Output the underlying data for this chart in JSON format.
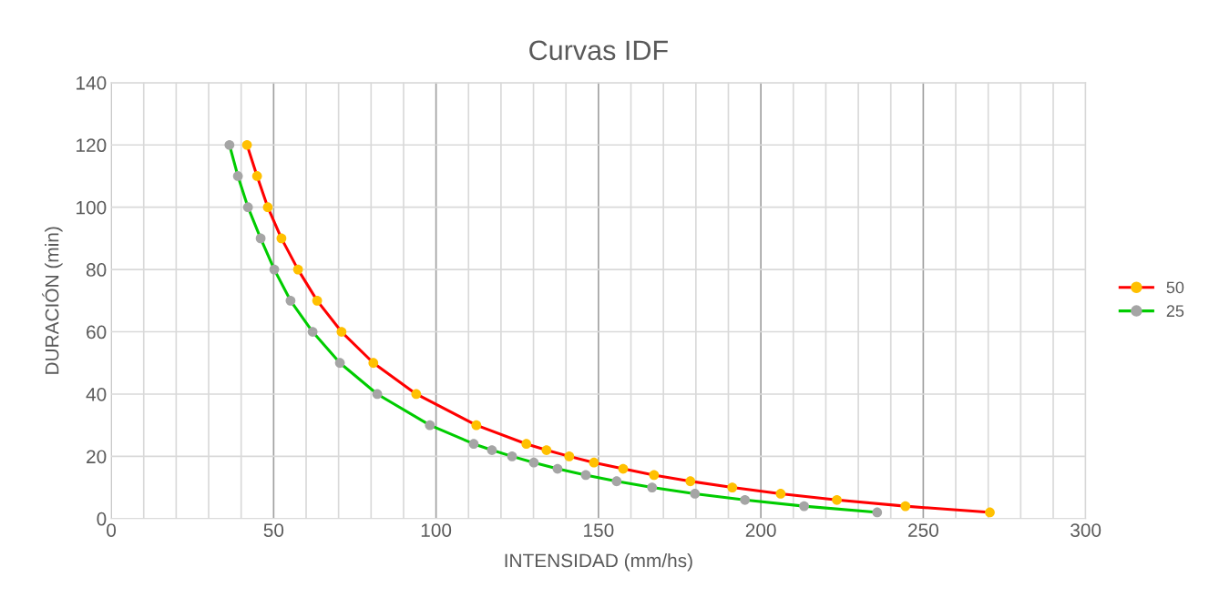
{
  "chart_data": {
    "type": "line",
    "title": "Curvas IDF",
    "xlabel": "INTENSIDAD (mm/hs)",
    "ylabel": "DURACIÓN (min)",
    "xlim": [
      0,
      300
    ],
    "ylim": [
      0,
      140
    ],
    "xticks": [
      0,
      {
        "value": 10,
        "label": null
      },
      {
        "value": 20,
        "label": null
      },
      {
        "value": 30,
        "label": null
      },
      {
        "value": 40,
        "label": null
      },
      50,
      {
        "value": 60,
        "label": null
      },
      {
        "value": 70,
        "label": null
      },
      {
        "value": 80,
        "label": null
      },
      {
        "value": 90,
        "label": null
      },
      100,
      {
        "value": 110,
        "label": null
      },
      {
        "value": 120,
        "label": null
      },
      {
        "value": 130,
        "label": null
      },
      {
        "value": 140,
        "label": null
      },
      150,
      {
        "value": 160,
        "label": null
      },
      {
        "value": 170,
        "label": null
      },
      {
        "value": 180,
        "label": null
      },
      {
        "value": 190,
        "label": null
      },
      200,
      {
        "value": 210,
        "label": null
      },
      {
        "value": 220,
        "label": null
      },
      {
        "value": 230,
        "label": null
      },
      {
        "value": 240,
        "label": null
      },
      250,
      {
        "value": 260,
        "label": null
      },
      {
        "value": 270,
        "label": null
      },
      {
        "value": 280,
        "label": null
      },
      {
        "value": 290,
        "label": null
      },
      300
    ],
    "yticks": [
      0,
      20,
      40,
      60,
      80,
      100,
      120,
      140
    ],
    "grid": true,
    "legend": "right",
    "marker": "circle",
    "line_style": "solid",
    "series": [
      {
        "name": "50",
        "color": "#ff0000",
        "colors": [
          "#ffc000",
          "#ffc000",
          "#ffc000",
          "#ffc000",
          "#ffc000",
          "#ffc000",
          "#ffc000",
          "#ffc000",
          "#ffc000",
          "#ffc000",
          "#ffc000",
          "#ffc000",
          "#ffc000",
          "#ffc000",
          "#ffc000",
          "#ffc000",
          "#ffc000",
          "#ffc000",
          "#ffc000",
          "#ffc000",
          "#ffc000",
          "#ffc000"
        ],
        "x": [
          41.8,
          44.9,
          48.2,
          52.4,
          57.5,
          63.4,
          70.9,
          80.7,
          93.9,
          112.4,
          127.8,
          134.0,
          141.0,
          148.6,
          157.6,
          167.1,
          178.3,
          191.2,
          206.1,
          223.4,
          244.5,
          270.5
        ],
        "values": [
          120,
          110,
          100,
          90,
          80,
          70,
          60,
          50,
          40,
          30,
          24,
          22,
          20,
          18,
          16,
          14,
          12,
          10,
          8,
          6,
          4,
          2
        ]
      },
      {
        "name": "25",
        "color": "#00cc00",
        "colors": [
          "#a5a5a5",
          "#a5a5a5",
          "#a5a5a5",
          "#a5a5a5",
          "#a5a5a5",
          "#a5a5a5",
          "#a5a5a5",
          "#a5a5a5",
          "#a5a5a5",
          "#a5a5a5",
          "#a5a5a5",
          "#a5a5a5",
          "#a5a5a5",
          "#a5a5a5",
          "#a5a5a5",
          "#a5a5a5",
          "#a5a5a5",
          "#a5a5a5",
          "#a5a5a5",
          "#a5a5a5",
          "#a5a5a5",
          "#a5a5a5"
        ],
        "x": [
          36.4,
          39.0,
          42.1,
          46.0,
          50.2,
          55.2,
          62.0,
          70.4,
          81.9,
          98.1,
          111.6,
          117.2,
          123.4,
          130.1,
          137.4,
          146.1,
          155.6,
          166.5,
          179.7,
          195.1,
          213.3,
          235.8
        ],
        "values": [
          120,
          110,
          100,
          90,
          80,
          70,
          60,
          50,
          40,
          30,
          24,
          22,
          20,
          18,
          16,
          14,
          12,
          10,
          8,
          6,
          4,
          2
        ]
      }
    ]
  }
}
